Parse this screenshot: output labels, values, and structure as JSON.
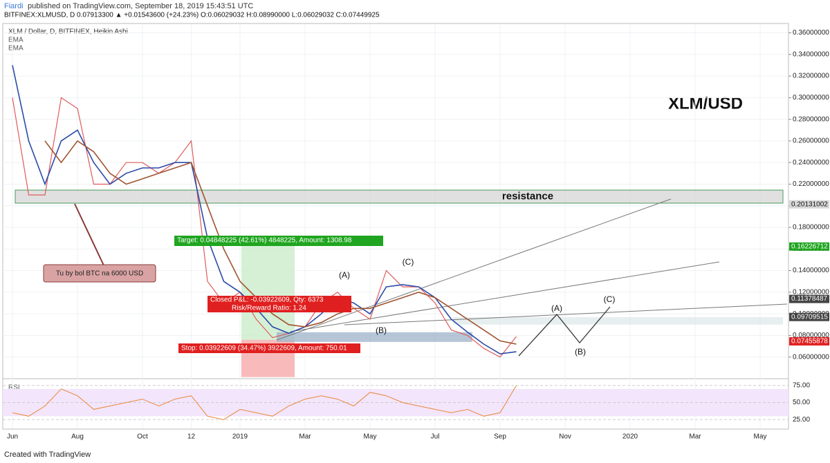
{
  "header": {
    "publisher": "Fiardi",
    "published": "published on TradingView.com, September 18, 2019 15:43:51 UTC",
    "symbol_line": "BITFINEX:XLMUSD, D  0.07913300  ▲ +0.01543600 (+24.23%)  O:0.06029032  H:0.08990000  L:0.06029032  C:0.07449925"
  },
  "chart_data": [
    {
      "type": "line",
      "title": "XLM / Dollar, D, BITFINEX, Heikin Ashi",
      "watermark": "XLM/USD",
      "grid": true,
      "categories": [
        "Jun",
        null,
        null,
        null,
        "Aug",
        null,
        null,
        null,
        "Oct",
        null,
        null,
        "12",
        null,
        null,
        "2019",
        null,
        null,
        null,
        "Mar",
        null,
        null,
        null,
        "May",
        null,
        null,
        null,
        "Jul",
        null,
        null,
        null,
        "Sep",
        null,
        null,
        null,
        "Nov",
        null,
        null,
        null,
        "2020",
        null,
        null,
        null,
        "Mar",
        null,
        null,
        null,
        "May"
      ],
      "series": [
        {
          "color": "#e05a5a",
          "values": [
            0.3,
            0.21,
            0.21,
            0.3,
            0.29,
            0.22,
            0.22,
            0.24,
            0.24,
            0.23,
            0.24,
            0.26,
            0.13,
            0.11,
            0.12,
            0.095,
            0.078,
            0.082,
            0.088,
            0.11,
            0.12,
            0.105,
            0.095,
            0.14,
            0.125,
            0.125,
            0.11,
            0.085,
            0.08,
            0.068,
            0.06,
            0.079,
            null,
            null,
            null,
            null,
            null,
            null,
            null,
            null,
            null,
            null,
            null,
            null,
            null,
            null,
            null
          ]
        },
        {
          "name": "EMA",
          "color": "#2a4aa8",
          "values": [
            0.33,
            0.26,
            0.22,
            0.26,
            0.27,
            0.24,
            0.22,
            0.23,
            0.235,
            0.235,
            0.24,
            0.24,
            0.17,
            0.13,
            0.12,
            0.105,
            0.088,
            0.082,
            0.088,
            0.1,
            0.115,
            0.11,
            0.1,
            0.125,
            0.127,
            0.125,
            0.115,
            0.095,
            0.083,
            0.072,
            0.063,
            0.065,
            null,
            null,
            null,
            null,
            null,
            null,
            null,
            null,
            null,
            null,
            null,
            null,
            null,
            null,
            null
          ]
        },
        {
          "name": "EMA",
          "color": "#a0522d",
          "values": [
            null,
            null,
            0.26,
            0.24,
            0.26,
            0.25,
            0.23,
            0.22,
            0.225,
            0.23,
            0.235,
            0.24,
            0.2,
            0.16,
            0.13,
            0.115,
            0.1,
            0.09,
            0.088,
            0.092,
            0.1,
            0.105,
            0.105,
            0.11,
            0.115,
            0.12,
            0.115,
            0.105,
            0.095,
            0.085,
            0.075,
            0.072,
            null,
            null,
            null,
            null,
            null,
            null,
            null,
            null,
            null,
            null,
            null,
            null,
            null,
            null,
            null
          ]
        }
      ],
      "ylim": [
        0.04,
        0.368
      ],
      "yticks": [
        {
          "value": 0.06,
          "label": "0.06000000"
        },
        {
          "value": 0.08,
          "label": "0.08000000"
        },
        {
          "value": 0.1,
          "label": "0.10000000"
        },
        {
          "value": 0.12,
          "label": "0.12000000"
        },
        {
          "value": 0.14,
          "label": "0.14000000"
        },
        {
          "value": 0.16,
          "label": "0.16000000"
        },
        {
          "value": 0.18,
          "label": "0.18000000"
        },
        {
          "value": 0.2,
          "label": "0.20000000"
        },
        {
          "value": 0.22,
          "label": "0.22000000"
        },
        {
          "value": 0.24,
          "label": "0.24000000"
        },
        {
          "value": 0.26,
          "label": "0.26000000"
        },
        {
          "value": 0.28,
          "label": "0.28000000"
        },
        {
          "value": 0.3,
          "label": "0.30000000"
        },
        {
          "value": 0.32,
          "label": "0.32000000"
        },
        {
          "value": 0.34,
          "label": "0.34000000"
        },
        {
          "value": 0.36,
          "label": "0.36000000"
        }
      ],
      "price_labels": [
        {
          "value": 0.20131002,
          "color": "#d8d8d8"
        },
        {
          "value": 0.16226712,
          "color": "#1fa51f"
        },
        {
          "value": 0.11378487,
          "color": "#444444"
        },
        {
          "value": 0.09709515,
          "color": "#444444"
        },
        {
          "value": 0.07455878,
          "color": "#e02020"
        }
      ],
      "zones": [
        {
          "label": "resistance",
          "low": 0.2024,
          "high": 0.2145,
          "color": "#d6d6d6"
        },
        {
          "low": 0.076,
          "high": 0.163,
          "color": "#c8ebc8"
        },
        {
          "low": 0.0415,
          "high": 0.076,
          "color": "#f5a3a3"
        },
        {
          "low": 0.074,
          "high": 0.083,
          "color": "#9db3c9"
        },
        {
          "low": 0.09,
          "high": 0.097,
          "color": "#dfe8ea"
        }
      ],
      "annotations": [
        "Tu by bol BTC na 6000 USD",
        "Target: 0.04848225 (42.61%) 4848225, Amount: 1308.98",
        "Closed P&L: -0.03922609, Qty: 6373",
        "Risk/Reward Ratio: 1.24",
        "Stop: 0.03922609 (34.47%) 3922609, Amount: 750.01",
        "(A)",
        "(C)",
        "(B)",
        "(A)",
        "(B)",
        "(C)"
      ]
    },
    {
      "type": "line",
      "title": "RSI",
      "band": [
        30,
        70
      ],
      "color": "#e8883a",
      "ylim": [
        12,
        84
      ],
      "yticks": [
        {
          "value": 75,
          "label": "75.00"
        },
        {
          "value": 50,
          "label": "50.00"
        },
        {
          "value": 25,
          "label": "25.00"
        }
      ],
      "values": [
        35,
        30,
        45,
        70,
        60,
        40,
        45,
        50,
        55,
        45,
        55,
        60,
        30,
        25,
        40,
        35,
        30,
        45,
        55,
        60,
        55,
        45,
        65,
        60,
        50,
        45,
        40,
        35,
        40,
        30,
        35,
        75,
        null,
        null,
        null,
        null,
        null,
        null,
        null,
        null,
        null,
        null,
        null,
        null,
        null,
        null,
        null
      ]
    }
  ],
  "footer": "Created with TradingView"
}
